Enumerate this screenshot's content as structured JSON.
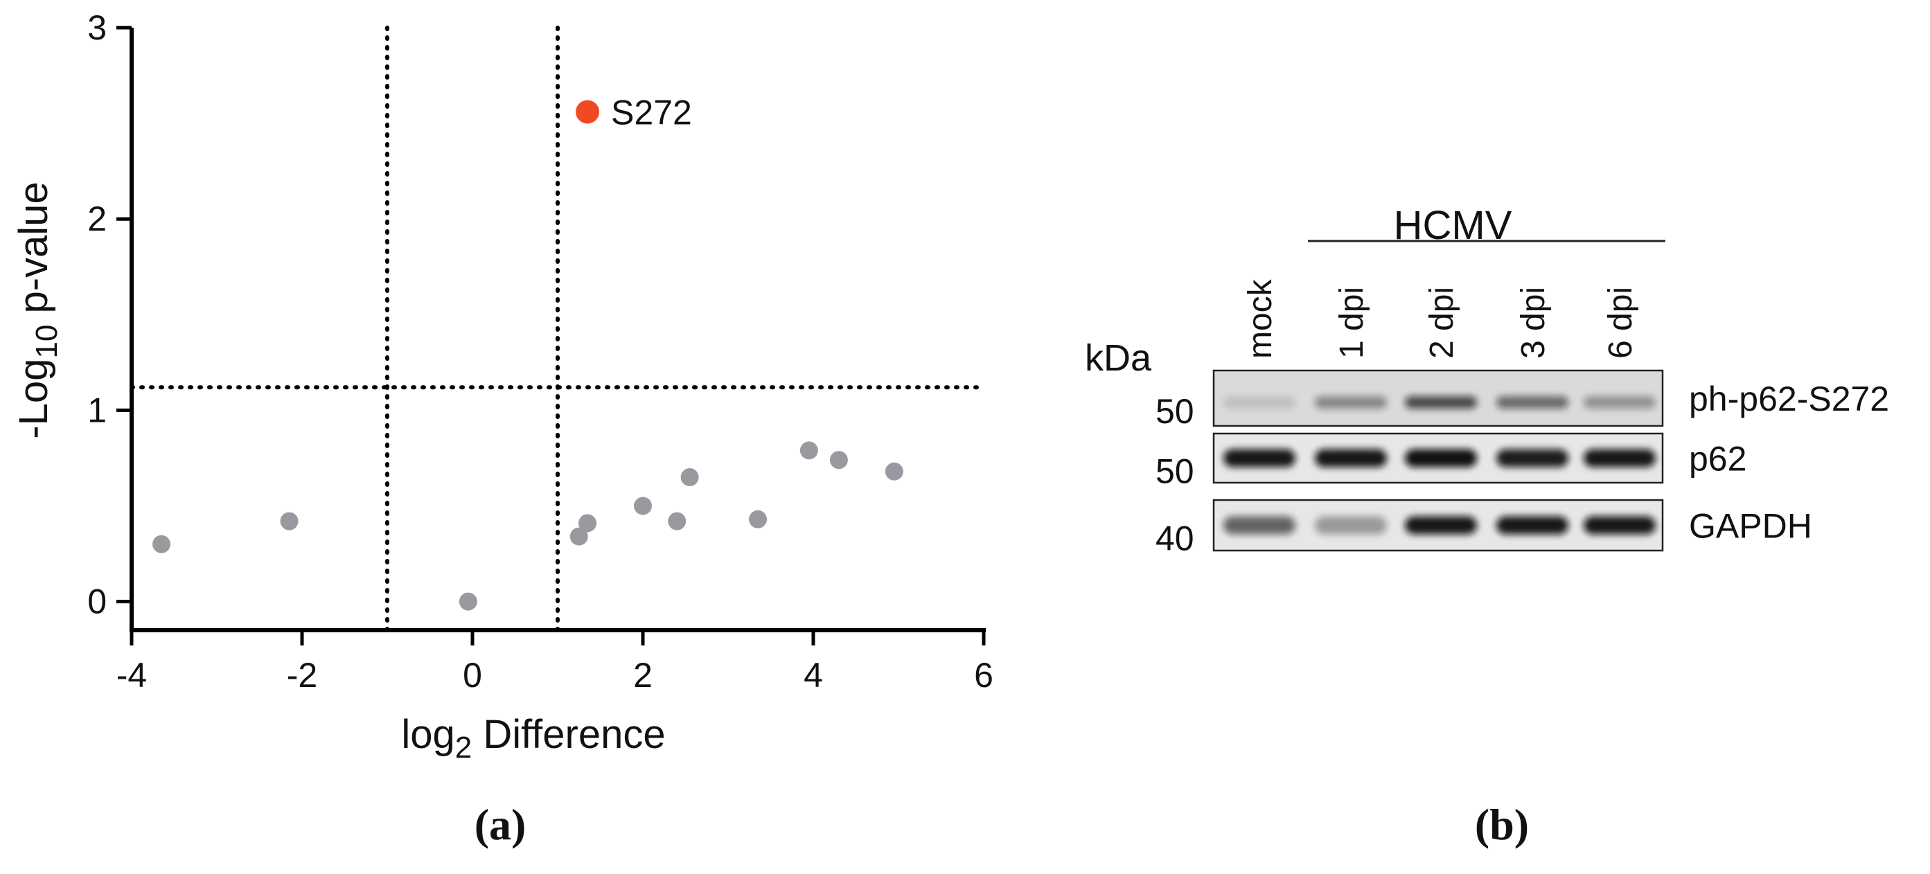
{
  "figure": {
    "panel_a_label": "(a)",
    "panel_b_label": "(b)"
  },
  "chart_data": [
    {
      "type": "scatter",
      "panel": "a",
      "title": "",
      "xlabel_parts": {
        "main": "log",
        "sub": "2",
        "rest": " Difference"
      },
      "ylabel_parts": {
        "main": "-Log",
        "sub": "10",
        "rest": " p-value"
      },
      "xlim": [
        -4,
        6
      ],
      "ylim": [
        -0.15,
        3
      ],
      "xticks": [
        -4,
        -2,
        0,
        2,
        4,
        6
      ],
      "yticks": [
        0,
        1,
        2,
        3
      ],
      "grid": false,
      "thresholds": {
        "x": [
          -1,
          1
        ],
        "y": 1.12
      },
      "series": [
        {
          "color": "#9a999f",
          "points": [
            {
              "x": -3.65,
              "y": 0.3
            },
            {
              "x": -2.15,
              "y": 0.42
            },
            {
              "x": -0.05,
              "y": 0.0
            },
            {
              "x": 1.25,
              "y": 0.34
            },
            {
              "x": 1.35,
              "y": 0.41
            },
            {
              "x": 2.0,
              "y": 0.5
            },
            {
              "x": 2.4,
              "y": 0.42
            },
            {
              "x": 2.55,
              "y": 0.65
            },
            {
              "x": 3.35,
              "y": 0.43
            },
            {
              "x": 3.95,
              "y": 0.79
            },
            {
              "x": 4.3,
              "y": 0.74
            },
            {
              "x": 4.95,
              "y": 0.68
            }
          ]
        },
        {
          "color": "#f04a22",
          "points": [
            {
              "x": 1.35,
              "y": 2.56,
              "label": "S272"
            }
          ]
        }
      ]
    },
    {
      "type": "western-blot",
      "panel": "b",
      "group_label": "HCMV",
      "kda_header": "kDa",
      "lanes": [
        "mock",
        "1 dpi",
        "2 dpi",
        "3 dpi",
        "6 dpi"
      ],
      "rows": [
        {
          "name": "ph-p62-S272",
          "kda": "50",
          "band_intensity": [
            0.12,
            0.4,
            0.7,
            0.55,
            0.35
          ]
        },
        {
          "name": "p62",
          "kda": "50",
          "band_intensity": [
            0.95,
            0.95,
            0.98,
            0.92,
            0.95
          ]
        },
        {
          "name": "GAPDH",
          "kda": "40",
          "band_intensity": [
            0.6,
            0.35,
            0.95,
            0.95,
            0.95
          ]
        }
      ]
    }
  ]
}
